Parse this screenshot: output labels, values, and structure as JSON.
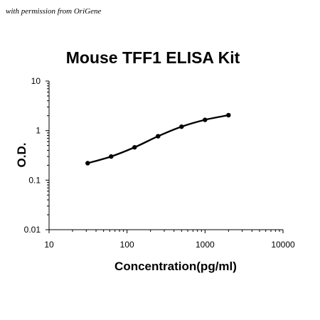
{
  "watermark": "with permission from OriGene",
  "chart_data": {
    "type": "line",
    "title": "Mouse TFF1 ELISA Kit",
    "xlabel": "Concentration(pg/ml)",
    "ylabel": "O.D.",
    "xscale": "log",
    "yscale": "log",
    "xlim": [
      10,
      10000
    ],
    "ylim": [
      0.01,
      10
    ],
    "xticks": [
      "10",
      "100",
      "1000",
      "10000"
    ],
    "yticks": [
      "10",
      "1",
      "0.1",
      "0.01"
    ],
    "grid": false,
    "legend": "none",
    "series": [
      {
        "x": [
          31.25,
          62.5,
          125,
          250,
          500,
          1000,
          2000
        ],
        "y": [
          0.22,
          0.3,
          0.46,
          0.77,
          1.2,
          1.65,
          2.05
        ],
        "color": "#000000",
        "marker": "circle"
      }
    ]
  }
}
